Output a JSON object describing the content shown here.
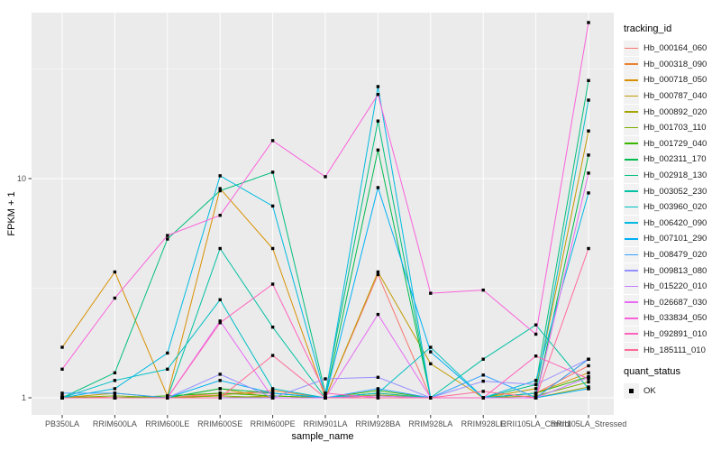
{
  "chart_data": {
    "type": "line",
    "title": "",
    "xlabel": "sample_name",
    "ylabel": "FPKM + 1",
    "y_scale": "log10",
    "y_ticks": [
      1,
      10
    ],
    "y_minor_gridlines": [
      3.1623,
      31.623
    ],
    "ylim": [
      0.84,
      57
    ],
    "grid": true,
    "panel_bg": "#EBEBEB",
    "gridline_color": "#FFFFFF",
    "point_color": "#000000",
    "legend_position": "right",
    "legend_title": "tracking_id",
    "quant_legend_title": "quant_status",
    "quant_ok_label": "OK",
    "categories": [
      "PB350LA",
      "RRIM600LA",
      "RRIM600LE",
      "RRIM600SE",
      "RRIM600PE",
      "RRIM901LA",
      "RRIM928BA",
      "RRIM928LA",
      "RRIM928LE",
      "RRII105LA_Control",
      "RRII105LA_Stressed"
    ],
    "series": [
      {
        "name": "Hb_000164_060",
        "color": "#F8766D",
        "values": [
          1.02,
          1.0,
          1.0,
          1.05,
          1.05,
          1.0,
          3.65,
          1.0,
          1.0,
          1.05,
          1.4
        ]
      },
      {
        "name": "Hb_000318_090",
        "color": "#EA8331",
        "values": [
          1.0,
          1.0,
          1.0,
          1.03,
          1.08,
          1.0,
          1.05,
          1.0,
          1.0,
          1.0,
          1.5
        ]
      },
      {
        "name": "Hb_000718_050",
        "color": "#D89000",
        "values": [
          1.7,
          3.75,
          1.02,
          9.0,
          4.8,
          1.0,
          1.02,
          1.0,
          1.0,
          1.05,
          1.3
        ]
      },
      {
        "name": "Hb_000787_040",
        "color": "#C09B00",
        "values": [
          1.0,
          1.05,
          1.0,
          1.1,
          1.0,
          1.0,
          3.75,
          1.43,
          1.0,
          1.1,
          16.5
        ]
      },
      {
        "name": "Hb_000892_020",
        "color": "#A3A500",
        "values": [
          1.0,
          1.0,
          1.0,
          1.0,
          1.02,
          1.0,
          1.0,
          1.0,
          1.0,
          1.0,
          1.12
        ]
      },
      {
        "name": "Hb_001703_110",
        "color": "#7CAE00",
        "values": [
          1.0,
          1.02,
          1.0,
          1.02,
          1.0,
          1.0,
          1.03,
          1.0,
          1.0,
          1.02,
          1.18
        ]
      },
      {
        "name": "Hb_001729_040",
        "color": "#39B600",
        "values": [
          1.0,
          1.0,
          1.02,
          1.05,
          1.02,
          1.0,
          1.08,
          1.0,
          1.0,
          1.05,
          1.25
        ]
      },
      {
        "name": "Hb_002311_170",
        "color": "#00BB4E",
        "values": [
          1.0,
          1.0,
          1.0,
          1.1,
          1.05,
          1.0,
          13.5,
          1.0,
          1.0,
          1.0,
          12.8
        ]
      },
      {
        "name": "Hb_002918_130",
        "color": "#00BF7D",
        "values": [
          1.0,
          1.3,
          5.3,
          8.8,
          10.7,
          1.05,
          18.3,
          1.0,
          1.0,
          1.15,
          28.0
        ]
      },
      {
        "name": "Hb_003052_230",
        "color": "#00C1A3",
        "values": [
          1.0,
          1.0,
          1.0,
          4.8,
          2.1,
          1.0,
          1.05,
          1.0,
          1.5,
          2.15,
          1.1
        ]
      },
      {
        "name": "Hb_003960_020",
        "color": "#00BFC4",
        "values": [
          1.0,
          1.2,
          1.35,
          2.8,
          1.1,
          1.0,
          1.05,
          1.7,
          1.0,
          1.05,
          22.8
        ]
      },
      {
        "name": "Hb_006420_090",
        "color": "#00BAE0",
        "values": [
          1.0,
          1.1,
          1.6,
          10.3,
          7.5,
          1.02,
          26.3,
          1.0,
          1.0,
          1.2,
          8.6
        ]
      },
      {
        "name": "Hb_007101_290",
        "color": "#00B0F6",
        "values": [
          1.0,
          1.0,
          1.0,
          1.2,
          1.05,
          1.0,
          9.1,
          1.62,
          1.0,
          1.0,
          1.1
        ]
      },
      {
        "name": "Hb_008479_020",
        "color": "#35A2FF",
        "values": [
          1.05,
          1.05,
          1.0,
          1.0,
          1.0,
          1.0,
          1.1,
          1.0,
          1.27,
          1.0,
          1.5
        ]
      },
      {
        "name": "Hb_009813_080",
        "color": "#9590FF",
        "values": [
          1.0,
          1.0,
          1.0,
          1.28,
          1.0,
          1.22,
          1.24,
          1.0,
          1.19,
          1.15,
          1.5
        ]
      },
      {
        "name": "Hb_015220_010",
        "color": "#C77CFF",
        "values": [
          1.0,
          1.0,
          1.0,
          1.0,
          1.0,
          1.0,
          1.02,
          1.0,
          1.0,
          1.0,
          1.24
        ]
      },
      {
        "name": "Hb_026687_030",
        "color": "#E76BF3",
        "values": [
          1.0,
          1.0,
          1.0,
          2.24,
          1.0,
          1.0,
          2.4,
          1.0,
          1.0,
          1.0,
          10.6
        ]
      },
      {
        "name": "Hb_033834_050",
        "color": "#FA62DB",
        "values": [
          1.35,
          2.85,
          5.5,
          6.8,
          14.9,
          10.2,
          24.2,
          3.0,
          3.1,
          1.95,
          51.5
        ]
      },
      {
        "name": "Hb_092891_010",
        "color": "#FF62BC",
        "values": [
          1.0,
          1.0,
          1.0,
          2.2,
          3.3,
          1.05,
          1.0,
          1.0,
          1.0,
          1.55,
          1.22
        ]
      },
      {
        "name": "Hb_185111_010",
        "color": "#FF6A98",
        "values": [
          1.0,
          1.0,
          1.0,
          1.0,
          1.56,
          1.0,
          1.0,
          1.0,
          1.07,
          1.0,
          4.8
        ]
      }
    ]
  }
}
